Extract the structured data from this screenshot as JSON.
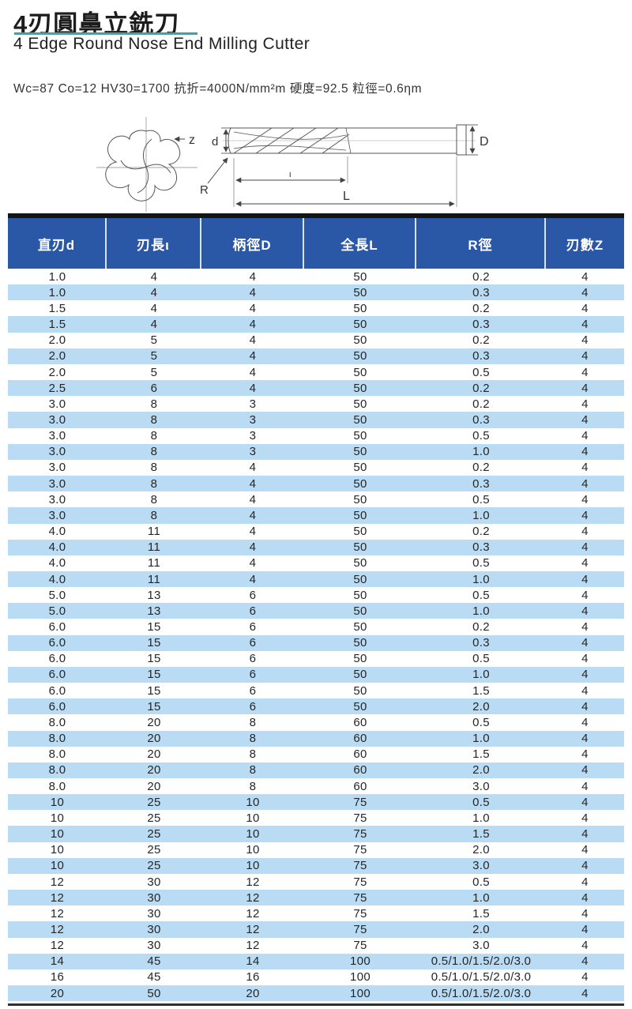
{
  "doc": {
    "title_zh": "4刃圓鼻立銑刀",
    "title_en": "4 Edge Round Nose End Milling Cutter",
    "spec_line": "Wc=87 Co=12 HV30=1700 抗折=4000N/mm²m 硬度=92.5 粒徑=0.6ηm"
  },
  "diagram": {
    "labels": {
      "z": "z",
      "d": "d",
      "D": "D",
      "R": "R",
      "flute_length": "ι",
      "overall_length": "L"
    }
  },
  "table": {
    "columns": [
      "直刃d",
      "刃長ι",
      "柄徑D",
      "全長L",
      "R徑",
      "刃數Z"
    ],
    "rows": [
      [
        "1.0",
        "4",
        "4",
        "50",
        "0.2",
        "4"
      ],
      [
        "1.0",
        "4",
        "4",
        "50",
        "0.3",
        "4"
      ],
      [
        "1.5",
        "4",
        "4",
        "50",
        "0.2",
        "4"
      ],
      [
        "1.5",
        "4",
        "4",
        "50",
        "0.3",
        "4"
      ],
      [
        "2.0",
        "5",
        "4",
        "50",
        "0.2",
        "4"
      ],
      [
        "2.0",
        "5",
        "4",
        "50",
        "0.3",
        "4"
      ],
      [
        "2.0",
        "5",
        "4",
        "50",
        "0.5",
        "4"
      ],
      [
        "2.5",
        "6",
        "4",
        "50",
        "0.2",
        "4"
      ],
      [
        "3.0",
        "8",
        "3",
        "50",
        "0.2",
        "4"
      ],
      [
        "3.0",
        "8",
        "3",
        "50",
        "0.3",
        "4"
      ],
      [
        "3.0",
        "8",
        "3",
        "50",
        "0.5",
        "4"
      ],
      [
        "3.0",
        "8",
        "3",
        "50",
        "1.0",
        "4"
      ],
      [
        "3.0",
        "8",
        "4",
        "50",
        "0.2",
        "4"
      ],
      [
        "3.0",
        "8",
        "4",
        "50",
        "0.3",
        "4"
      ],
      [
        "3.0",
        "8",
        "4",
        "50",
        "0.5",
        "4"
      ],
      [
        "3.0",
        "8",
        "4",
        "50",
        "1.0",
        "4"
      ],
      [
        "4.0",
        "11",
        "4",
        "50",
        "0.2",
        "4"
      ],
      [
        "4.0",
        "11",
        "4",
        "50",
        "0.3",
        "4"
      ],
      [
        "4.0",
        "11",
        "4",
        "50",
        "0.5",
        "4"
      ],
      [
        "4.0",
        "11",
        "4",
        "50",
        "1.0",
        "4"
      ],
      [
        "5.0",
        "13",
        "6",
        "50",
        "0.5",
        "4"
      ],
      [
        "5.0",
        "13",
        "6",
        "50",
        "1.0",
        "4"
      ],
      [
        "6.0",
        "15",
        "6",
        "50",
        "0.2",
        "4"
      ],
      [
        "6.0",
        "15",
        "6",
        "50",
        "0.3",
        "4"
      ],
      [
        "6.0",
        "15",
        "6",
        "50",
        "0.5",
        "4"
      ],
      [
        "6.0",
        "15",
        "6",
        "50",
        "1.0",
        "4"
      ],
      [
        "6.0",
        "15",
        "6",
        "50",
        "1.5",
        "4"
      ],
      [
        "6.0",
        "15",
        "6",
        "50",
        "2.0",
        "4"
      ],
      [
        "8.0",
        "20",
        "8",
        "60",
        "0.5",
        "4"
      ],
      [
        "8.0",
        "20",
        "8",
        "60",
        "1.0",
        "4"
      ],
      [
        "8.0",
        "20",
        "8",
        "60",
        "1.5",
        "4"
      ],
      [
        "8.0",
        "20",
        "8",
        "60",
        "2.0",
        "4"
      ],
      [
        "8.0",
        "20",
        "8",
        "60",
        "3.0",
        "4"
      ],
      [
        "10",
        "25",
        "10",
        "75",
        "0.5",
        "4"
      ],
      [
        "10",
        "25",
        "10",
        "75",
        "1.0",
        "4"
      ],
      [
        "10",
        "25",
        "10",
        "75",
        "1.5",
        "4"
      ],
      [
        "10",
        "25",
        "10",
        "75",
        "2.0",
        "4"
      ],
      [
        "10",
        "25",
        "10",
        "75",
        "3.0",
        "4"
      ],
      [
        "12",
        "30",
        "12",
        "75",
        "0.5",
        "4"
      ],
      [
        "12",
        "30",
        "12",
        "75",
        "1.0",
        "4"
      ],
      [
        "12",
        "30",
        "12",
        "75",
        "1.5",
        "4"
      ],
      [
        "12",
        "30",
        "12",
        "75",
        "2.0",
        "4"
      ],
      [
        "12",
        "30",
        "12",
        "75",
        "3.0",
        "4"
      ],
      [
        "14",
        "45",
        "14",
        "100",
        "0.5/1.0/1.5/2.0/3.0",
        "4"
      ],
      [
        "16",
        "45",
        "16",
        "100",
        "0.5/1.0/1.5/2.0/3.0",
        "4"
      ],
      [
        "20",
        "50",
        "20",
        "100",
        "0.5/1.0/1.5/2.0/3.0",
        "4"
      ]
    ]
  },
  "colors": {
    "accent_teal": "#2fa9ab",
    "header_bg": "#2b57a7",
    "row_alt_blue": "#b9dbf3",
    "bar_black": "#141414",
    "text_dark": "#262626"
  }
}
